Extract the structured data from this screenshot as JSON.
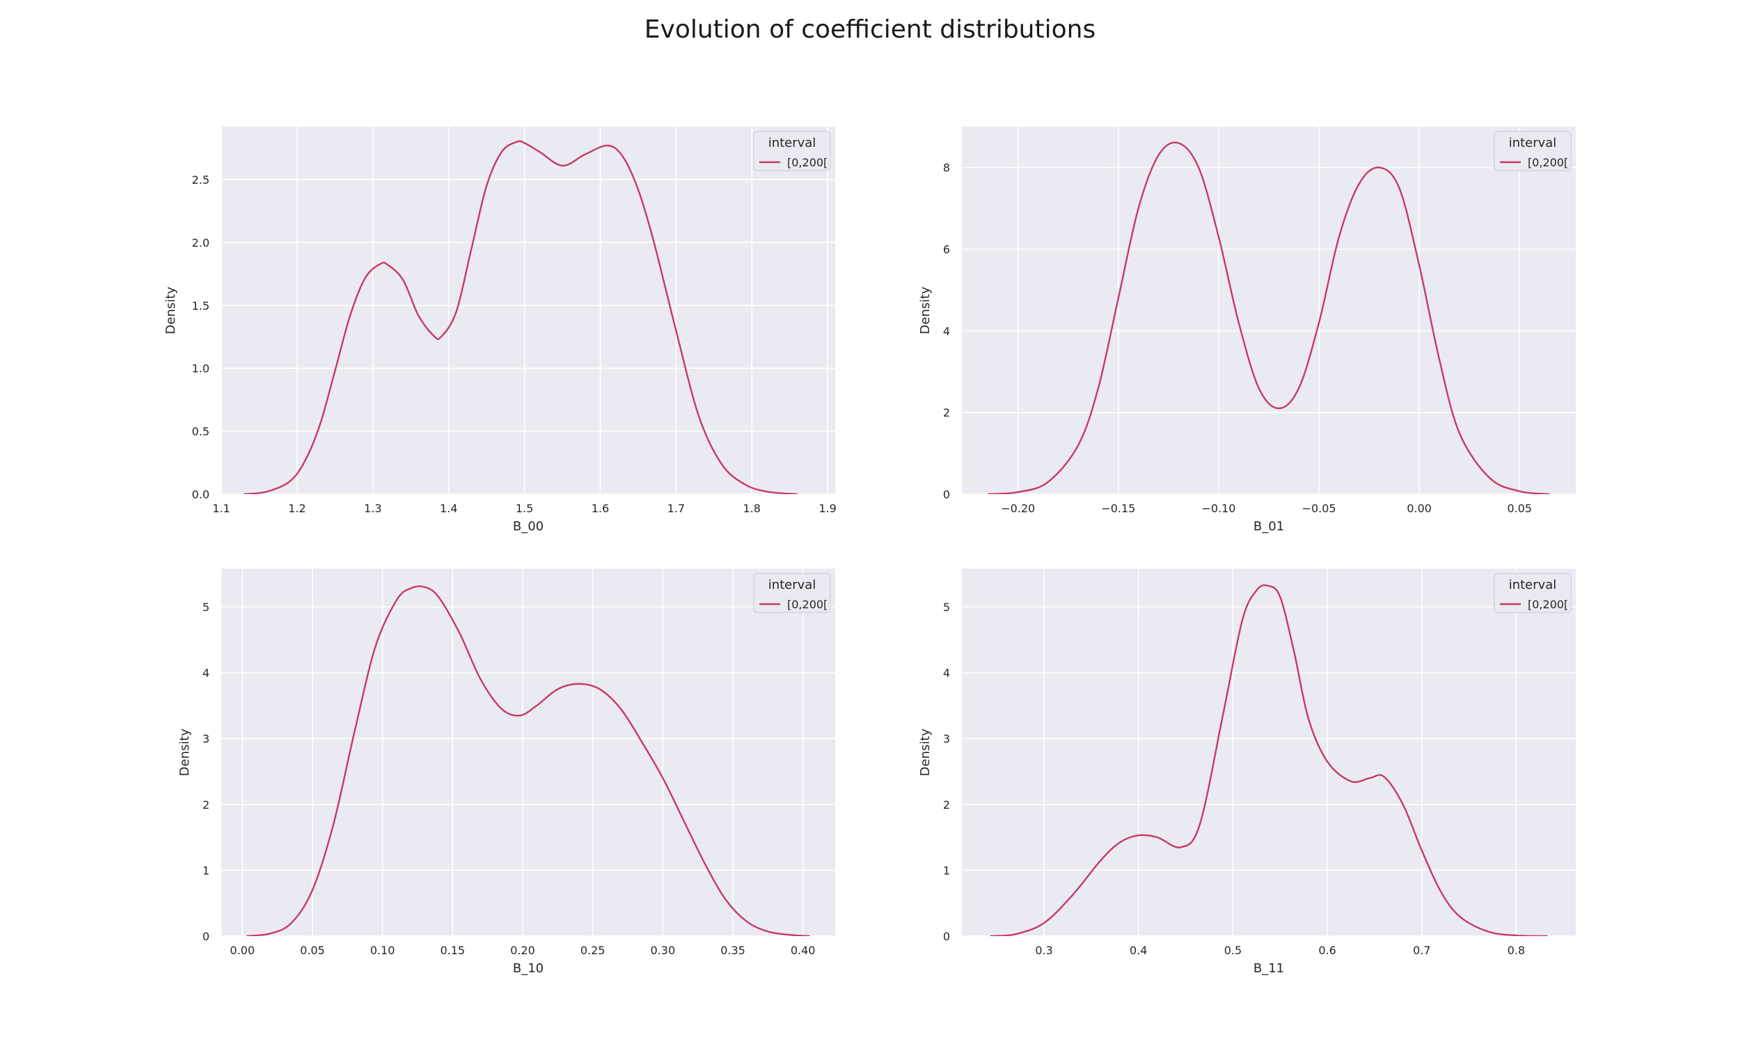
{
  "figure": {
    "title": "Evolution of coefficient distributions"
  },
  "style": {
    "background": "#eaeaf2",
    "grid": "#ffffff",
    "line_color": "#c8386a"
  },
  "chart_data": [
    {
      "type": "line",
      "xlabel": "B_00",
      "ylabel": "Density",
      "xlim": [
        1.1,
        1.91
      ],
      "ylim": [
        0,
        2.92
      ],
      "xticks": [
        1.1,
        1.2,
        1.3,
        1.4,
        1.5,
        1.6,
        1.7,
        1.8,
        1.9
      ],
      "xtick_labels": [
        "1.1",
        "1.2",
        "1.3",
        "1.4",
        "1.5",
        "1.6",
        "1.7",
        "1.8",
        "1.9"
      ],
      "yticks": [
        0,
        0.5,
        1,
        1.5,
        2,
        2.5
      ],
      "ytick_labels": [
        "0.0",
        "0.5",
        "1.0",
        "1.5",
        "2.0",
        "2.5"
      ],
      "grid": true,
      "legend_placement": "top-right",
      "legend_title": "interval",
      "series": [
        {
          "name": "[0,200[",
          "color": "#c8386a",
          "x": [
            1.13,
            1.16,
            1.19,
            1.21,
            1.23,
            1.25,
            1.27,
            1.29,
            1.31,
            1.32,
            1.34,
            1.36,
            1.38,
            1.39,
            1.41,
            1.43,
            1.45,
            1.47,
            1.49,
            1.5,
            1.52,
            1.55,
            1.58,
            1.61,
            1.63,
            1.65,
            1.67,
            1.7,
            1.73,
            1.76,
            1.79,
            1.82,
            1.86
          ],
          "y": [
            0.0,
            0.02,
            0.1,
            0.26,
            0.55,
            0.98,
            1.42,
            1.72,
            1.83,
            1.82,
            1.7,
            1.42,
            1.26,
            1.25,
            1.45,
            1.95,
            2.45,
            2.72,
            2.8,
            2.79,
            2.72,
            2.61,
            2.7,
            2.77,
            2.68,
            2.42,
            2.02,
            1.3,
            0.62,
            0.24,
            0.08,
            0.02,
            0.0
          ]
        }
      ]
    },
    {
      "type": "line",
      "xlabel": "B_01",
      "ylabel": "Density",
      "xlim": [
        -0.228,
        0.078
      ],
      "ylim": [
        0,
        9.0
      ],
      "xticks": [
        -0.2,
        -0.15,
        -0.1,
        -0.05,
        0.0,
        0.05
      ],
      "xtick_labels": [
        "−0.20",
        "−0.15",
        "−0.10",
        "−0.05",
        "0.00",
        "0.05"
      ],
      "yticks": [
        0,
        2,
        4,
        6,
        8
      ],
      "ytick_labels": [
        "0",
        "2",
        "4",
        "6",
        "8"
      ],
      "grid": true,
      "legend_placement": "top-right",
      "legend_title": "interval",
      "series": [
        {
          "name": "[0,200[",
          "color": "#c8386a",
          "x": [
            -0.215,
            -0.2,
            -0.185,
            -0.17,
            -0.16,
            -0.15,
            -0.14,
            -0.13,
            -0.12,
            -0.11,
            -0.1,
            -0.09,
            -0.08,
            -0.07,
            -0.06,
            -0.05,
            -0.04,
            -0.03,
            -0.02,
            -0.01,
            0.0,
            0.01,
            0.02,
            0.035,
            0.05,
            0.065
          ],
          "y": [
            0.0,
            0.05,
            0.3,
            1.2,
            2.6,
            4.8,
            7.0,
            8.3,
            8.6,
            8.0,
            6.3,
            4.2,
            2.6,
            2.1,
            2.6,
            4.2,
            6.3,
            7.6,
            8.0,
            7.5,
            5.6,
            3.3,
            1.5,
            0.4,
            0.07,
            0.0
          ]
        }
      ]
    },
    {
      "type": "line",
      "xlabel": "B_10",
      "ylabel": "Density",
      "xlim": [
        -0.015,
        0.423
      ],
      "ylim": [
        0,
        5.58
      ],
      "xticks": [
        0.0,
        0.05,
        0.1,
        0.15,
        0.2,
        0.25,
        0.3,
        0.35,
        0.4
      ],
      "xtick_labels": [
        "0.00",
        "0.05",
        "0.10",
        "0.15",
        "0.20",
        "0.25",
        "0.30",
        "0.35",
        "0.40"
      ],
      "yticks": [
        0,
        1,
        2,
        3,
        4,
        5
      ],
      "ytick_labels": [
        "0",
        "1",
        "2",
        "3",
        "4",
        "5"
      ],
      "grid": true,
      "legend_placement": "top-right",
      "legend_title": "interval",
      "series": [
        {
          "name": "[0,200[",
          "color": "#c8386a",
          "x": [
            0.003,
            0.02,
            0.035,
            0.05,
            0.065,
            0.08,
            0.095,
            0.11,
            0.12,
            0.13,
            0.14,
            0.155,
            0.17,
            0.185,
            0.198,
            0.21,
            0.225,
            0.24,
            0.255,
            0.27,
            0.285,
            0.3,
            0.315,
            0.33,
            0.345,
            0.36,
            0.375,
            0.39,
            0.405
          ],
          "y": [
            0.0,
            0.04,
            0.2,
            0.7,
            1.7,
            3.1,
            4.4,
            5.1,
            5.28,
            5.3,
            5.15,
            4.6,
            3.9,
            3.45,
            3.35,
            3.5,
            3.75,
            3.83,
            3.75,
            3.45,
            2.95,
            2.4,
            1.75,
            1.1,
            0.55,
            0.22,
            0.07,
            0.02,
            0.0
          ]
        }
      ]
    },
    {
      "type": "line",
      "xlabel": "B_11",
      "ylabel": "Density",
      "xlim": [
        0.213,
        0.863
      ],
      "ylim": [
        0,
        5.58
      ],
      "xticks": [
        0.3,
        0.4,
        0.5,
        0.6,
        0.7,
        0.8
      ],
      "xtick_labels": [
        "0.3",
        "0.4",
        "0.5",
        "0.6",
        "0.7",
        "0.8"
      ],
      "yticks": [
        0,
        1,
        2,
        3,
        4,
        5
      ],
      "ytick_labels": [
        "0",
        "1",
        "2",
        "3",
        "4",
        "5"
      ],
      "grid": true,
      "legend_placement": "top-right",
      "legend_title": "interval",
      "series": [
        {
          "name": "[0,200[",
          "color": "#c8386a",
          "x": [
            0.243,
            0.27,
            0.3,
            0.33,
            0.36,
            0.38,
            0.4,
            0.42,
            0.445,
            0.465,
            0.49,
            0.51,
            0.525,
            0.537,
            0.55,
            0.565,
            0.58,
            0.6,
            0.625,
            0.645,
            0.66,
            0.68,
            0.7,
            0.72,
            0.74,
            0.77,
            0.8,
            0.833
          ],
          "y": [
            0.0,
            0.03,
            0.2,
            0.62,
            1.15,
            1.42,
            1.53,
            1.5,
            1.35,
            1.7,
            3.4,
            4.8,
            5.25,
            5.32,
            5.15,
            4.3,
            3.3,
            2.65,
            2.35,
            2.4,
            2.42,
            2.0,
            1.3,
            0.68,
            0.3,
            0.07,
            0.01,
            0.0
          ]
        }
      ]
    }
  ]
}
